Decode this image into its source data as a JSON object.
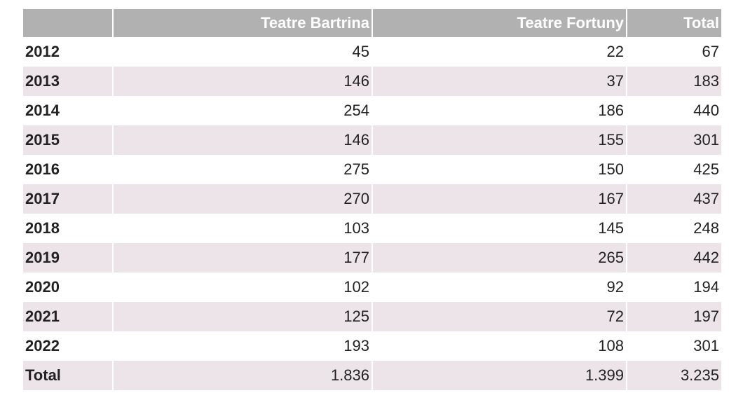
{
  "table": {
    "headers": [
      "",
      "Teatre Bartrina",
      "Teatre Fortuny",
      "Total"
    ],
    "rows": [
      [
        "2012",
        "45",
        "22",
        "67"
      ],
      [
        "2013",
        "146",
        "37",
        "183"
      ],
      [
        "2014",
        "254",
        "186",
        "440"
      ],
      [
        "2015",
        "146",
        "155",
        "301"
      ],
      [
        "2016",
        "275",
        "150",
        "425"
      ],
      [
        "2017",
        "270",
        "167",
        "437"
      ],
      [
        "2018",
        "103",
        "145",
        "248"
      ],
      [
        "2019",
        "177",
        "265",
        "442"
      ],
      [
        "2020",
        "102",
        "92",
        "194"
      ],
      [
        "2021",
        "125",
        "72",
        "197"
      ],
      [
        "2022",
        "193",
        "108",
        "301"
      ]
    ],
    "total_row": [
      "Total",
      "1.836",
      "1.399",
      "3.235"
    ]
  },
  "colors": {
    "header_bg": "#b1b1b1",
    "header_text": "#ffffff",
    "stripe_bg": "#ece4e8"
  }
}
